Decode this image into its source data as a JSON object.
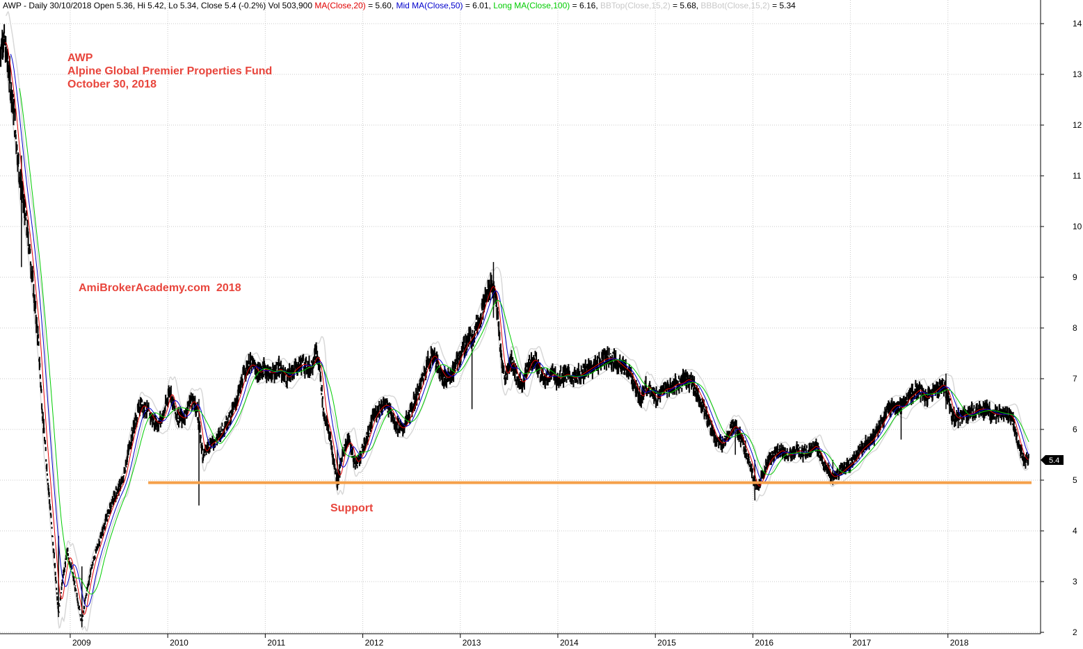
{
  "chart_data": {
    "type": "candlestick",
    "header": {
      "symbol": "AWP",
      "period": "Daily",
      "date": "30/10/2018",
      "open": "5.36",
      "high": "5.42",
      "low": "5.34",
      "close": "5.4 (-0.2%)",
      "volume": "503,900",
      "indicators": [
        {
          "label": "MA(Close,20)",
          "value": "5.60",
          "color": "#e00000"
        },
        {
          "label": "Mid MA(Close,50)",
          "value": "6.01",
          "color": "#0000cc"
        },
        {
          "label": "Long MA(Close,100)",
          "value": "6.16",
          "color": "#00cc00"
        },
        {
          "label": "BBTop(Close,15,2)",
          "value": "5.68",
          "color": "#c8c8c8"
        },
        {
          "label": "BBBot(Close,15,2)",
          "value": "5.34",
          "color": "#c8c8c8"
        }
      ]
    },
    "annotations": {
      "ticker": "AWP",
      "fund_name": "Alpine Global Premier Properties Fund",
      "date_text": "October 30, 2018",
      "watermark": "AmiBrokerAcademy.com  2018",
      "support_label": "Support"
    },
    "last_price_label": "5.4",
    "support_level": 4.95,
    "support_start": 2009.8,
    "ylim": [
      2,
      14
    ],
    "y_ticks": [
      2,
      3,
      4,
      5,
      6,
      7,
      8,
      9,
      10,
      11,
      12,
      13,
      14
    ],
    "xlim": [
      2008.28,
      2018.95
    ],
    "x_ticks": [
      {
        "label": "2009",
        "x": 2009.0
      },
      {
        "label": "2010",
        "x": 2010.0
      },
      {
        "label": "2011",
        "x": 2011.0
      },
      {
        "label": "2012",
        "x": 2012.0
      },
      {
        "label": "2013",
        "x": 2013.0
      },
      {
        "label": "2014",
        "x": 2014.0
      },
      {
        "label": "2015",
        "x": 2015.0
      },
      {
        "label": "2016",
        "x": 2016.0
      },
      {
        "label": "2017",
        "x": 2017.0
      },
      {
        "label": "2018",
        "x": 2018.0
      }
    ],
    "grid": true,
    "price_path": [
      [
        2008.28,
        13.4
      ],
      [
        2008.31,
        13.8
      ],
      [
        2008.36,
        13.2
      ],
      [
        2008.42,
        12.3
      ],
      [
        2008.48,
        11.0
      ],
      [
        2008.54,
        10.2
      ],
      [
        2008.58,
        9.6
      ],
      [
        2008.62,
        8.8
      ],
      [
        2008.67,
        7.8
      ],
      [
        2008.72,
        6.2
      ],
      [
        2008.78,
        4.8
      ],
      [
        2008.83,
        3.6
      ],
      [
        2008.88,
        2.4
      ],
      [
        2008.92,
        3.0
      ],
      [
        2008.97,
        3.6
      ],
      [
        2009.02,
        3.2
      ],
      [
        2009.08,
        2.6
      ],
      [
        2009.12,
        2.2
      ],
      [
        2009.16,
        2.7
      ],
      [
        2009.22,
        3.3
      ],
      [
        2009.3,
        3.8
      ],
      [
        2009.38,
        4.3
      ],
      [
        2009.46,
        4.7
      ],
      [
        2009.54,
        5.0
      ],
      [
        2009.6,
        5.6
      ],
      [
        2009.66,
        6.1
      ],
      [
        2009.72,
        6.5
      ],
      [
        2009.78,
        6.4
      ],
      [
        2009.84,
        6.2
      ],
      [
        2009.9,
        6.1
      ],
      [
        2009.96,
        6.3
      ],
      [
        2010.02,
        6.8
      ],
      [
        2010.08,
        6.3
      ],
      [
        2010.16,
        6.2
      ],
      [
        2010.24,
        6.6
      ],
      [
        2010.3,
        6.4
      ],
      [
        2010.36,
        5.5
      ],
      [
        2010.42,
        5.7
      ],
      [
        2010.5,
        5.8
      ],
      [
        2010.56,
        6.0
      ],
      [
        2010.62,
        6.2
      ],
      [
        2010.68,
        6.4
      ],
      [
        2010.74,
        6.8
      ],
      [
        2010.8,
        7.2
      ],
      [
        2010.86,
        7.3
      ],
      [
        2010.92,
        7.1
      ],
      [
        2010.98,
        7.2
      ],
      [
        2011.06,
        7.1
      ],
      [
        2011.14,
        7.2
      ],
      [
        2011.22,
        7.0
      ],
      [
        2011.3,
        7.2
      ],
      [
        2011.38,
        7.3
      ],
      [
        2011.46,
        7.2
      ],
      [
        2011.52,
        7.5
      ],
      [
        2011.56,
        7.2
      ],
      [
        2011.6,
        6.3
      ],
      [
        2011.66,
        5.9
      ],
      [
        2011.7,
        5.4
      ],
      [
        2011.74,
        4.95
      ],
      [
        2011.8,
        5.6
      ],
      [
        2011.86,
        5.8
      ],
      [
        2011.92,
        5.3
      ],
      [
        2011.98,
        5.5
      ],
      [
        2012.04,
        5.8
      ],
      [
        2012.1,
        6.2
      ],
      [
        2012.16,
        6.4
      ],
      [
        2012.22,
        6.5
      ],
      [
        2012.28,
        6.4
      ],
      [
        2012.34,
        6.1
      ],
      [
        2012.4,
        6.0
      ],
      [
        2012.46,
        6.2
      ],
      [
        2012.52,
        6.5
      ],
      [
        2012.58,
        6.8
      ],
      [
        2012.66,
        7.3
      ],
      [
        2012.72,
        7.5
      ],
      [
        2012.78,
        7.2
      ],
      [
        2012.84,
        7.0
      ],
      [
        2012.92,
        7.1
      ],
      [
        2012.98,
        7.4
      ],
      [
        2013.06,
        7.7
      ],
      [
        2013.14,
        7.9
      ],
      [
        2013.2,
        8.2
      ],
      [
        2013.26,
        8.6
      ],
      [
        2013.32,
        8.9
      ],
      [
        2013.37,
        8.5
      ],
      [
        2013.42,
        7.4
      ],
      [
        2013.46,
        7.0
      ],
      [
        2013.52,
        7.4
      ],
      [
        2013.58,
        7.0
      ],
      [
        2013.64,
        6.9
      ],
      [
        2013.7,
        7.3
      ],
      [
        2013.76,
        7.4
      ],
      [
        2013.82,
        7.1
      ],
      [
        2013.88,
        7.0
      ],
      [
        2013.94,
        7.1
      ],
      [
        2014.0,
        7.0
      ],
      [
        2014.08,
        7.1
      ],
      [
        2014.16,
        7.0
      ],
      [
        2014.24,
        7.1
      ],
      [
        2014.32,
        7.2
      ],
      [
        2014.4,
        7.3
      ],
      [
        2014.48,
        7.4
      ],
      [
        2014.56,
        7.4
      ],
      [
        2014.62,
        7.3
      ],
      [
        2014.68,
        7.2
      ],
      [
        2014.74,
        7.1
      ],
      [
        2014.8,
        6.8
      ],
      [
        2014.86,
        6.6
      ],
      [
        2014.9,
        6.9
      ],
      [
        2014.96,
        6.7
      ],
      [
        2015.02,
        6.6
      ],
      [
        2015.08,
        6.8
      ],
      [
        2015.14,
        6.8
      ],
      [
        2015.2,
        6.9
      ],
      [
        2015.26,
        6.9
      ],
      [
        2015.32,
        7.0
      ],
      [
        2015.38,
        6.9
      ],
      [
        2015.44,
        6.7
      ],
      [
        2015.5,
        6.4
      ],
      [
        2015.56,
        6.1
      ],
      [
        2015.62,
        5.8
      ],
      [
        2015.68,
        5.7
      ],
      [
        2015.74,
        5.9
      ],
      [
        2015.8,
        6.1
      ],
      [
        2015.86,
        5.9
      ],
      [
        2015.92,
        5.6
      ],
      [
        2015.98,
        5.3
      ],
      [
        2016.02,
        4.85
      ],
      [
        2016.06,
        4.9
      ],
      [
        2016.1,
        5.1
      ],
      [
        2016.16,
        5.4
      ],
      [
        2016.22,
        5.5
      ],
      [
        2016.28,
        5.6
      ],
      [
        2016.34,
        5.5
      ],
      [
        2016.4,
        5.5
      ],
      [
        2016.46,
        5.6
      ],
      [
        2016.52,
        5.5
      ],
      [
        2016.58,
        5.6
      ],
      [
        2016.64,
        5.7
      ],
      [
        2016.68,
        5.5
      ],
      [
        2016.74,
        5.3
      ],
      [
        2016.8,
        5.05
      ],
      [
        2016.86,
        5.1
      ],
      [
        2016.92,
        5.2
      ],
      [
        2016.98,
        5.3
      ],
      [
        2017.04,
        5.4
      ],
      [
        2017.1,
        5.6
      ],
      [
        2017.16,
        5.7
      ],
      [
        2017.22,
        5.8
      ],
      [
        2017.28,
        6.0
      ],
      [
        2017.34,
        6.2
      ],
      [
        2017.4,
        6.4
      ],
      [
        2017.46,
        6.5
      ],
      [
        2017.52,
        6.4
      ],
      [
        2017.58,
        6.6
      ],
      [
        2017.64,
        6.7
      ],
      [
        2017.7,
        6.8
      ],
      [
        2017.76,
        6.6
      ],
      [
        2017.82,
        6.7
      ],
      [
        2017.88,
        6.8
      ],
      [
        2017.94,
        6.9
      ],
      [
        2018.0,
        6.7
      ],
      [
        2018.04,
        6.3
      ],
      [
        2018.1,
        6.2
      ],
      [
        2018.16,
        6.3
      ],
      [
        2018.22,
        6.3
      ],
      [
        2018.3,
        6.4
      ],
      [
        2018.38,
        6.4
      ],
      [
        2018.46,
        6.3
      ],
      [
        2018.54,
        6.3
      ],
      [
        2018.62,
        6.3
      ],
      [
        2018.66,
        6.2
      ],
      [
        2018.7,
        5.9
      ],
      [
        2018.74,
        5.6
      ],
      [
        2018.78,
        5.4
      ],
      [
        2018.83,
        5.4
      ]
    ],
    "wicks": [
      {
        "x": 2008.5,
        "low": 9.2,
        "high": 11.4
      },
      {
        "x": 2008.88,
        "low": 2.3,
        "high": 3.9
      },
      {
        "x": 2009.12,
        "low": 2.1,
        "high": 3.3
      },
      {
        "x": 2010.32,
        "low": 4.5,
        "high": 6.6
      },
      {
        "x": 2011.74,
        "low": 4.8,
        "high": 5.6
      },
      {
        "x": 2013.12,
        "low": 6.4,
        "high": 7.9
      },
      {
        "x": 2013.34,
        "low": 8.2,
        "high": 9.3
      },
      {
        "x": 2015.82,
        "low": 5.5,
        "high": 6.2
      },
      {
        "x": 2016.02,
        "low": 4.6,
        "high": 5.4
      },
      {
        "x": 2016.82,
        "low": 4.9,
        "high": 5.4
      },
      {
        "x": 2017.52,
        "low": 5.8,
        "high": 6.6
      },
      {
        "x": 2017.98,
        "low": 6.4,
        "high": 7.1
      }
    ],
    "ma_series": [
      {
        "name": "MA(Close,20)",
        "color": "#e00000",
        "lag": 0.05,
        "smooth": 2
      },
      {
        "name": "Mid MA(Close,50)",
        "color": "#0000cc",
        "lag": 0.11,
        "smooth": 4
      },
      {
        "name": "Long MA(Close,100)",
        "color": "#00cc00",
        "lag": 0.2,
        "smooth": 6
      }
    ]
  }
}
